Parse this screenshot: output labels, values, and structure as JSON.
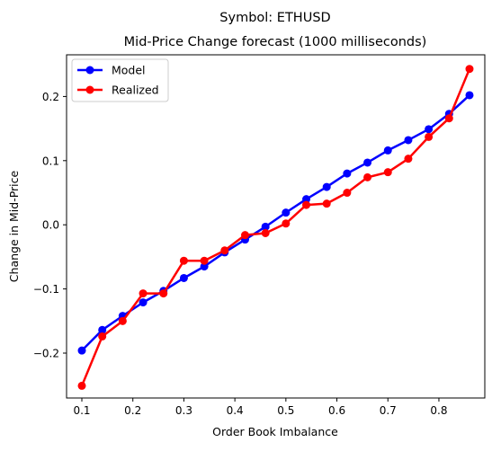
{
  "chart_data": {
    "type": "line",
    "suptitle": "Symbol: ETHUSD",
    "title": "Mid-Price Change forecast (1000 milliseconds)",
    "xlabel": "Order Book Imbalance",
    "ylabel": "Change in Mid-Price",
    "xlim": [
      0.07,
      0.89
    ],
    "ylim": [
      -0.27,
      0.265
    ],
    "xticks": [
      0.1,
      0.2,
      0.3,
      0.4,
      0.5,
      0.6,
      0.7,
      0.8
    ],
    "xtick_labels": [
      "0.1",
      "0.2",
      "0.3",
      "0.4",
      "0.5",
      "0.6",
      "0.7",
      "0.8"
    ],
    "yticks": [
      -0.2,
      -0.1,
      0.0,
      0.1,
      0.2
    ],
    "ytick_labels": [
      "−0.2",
      "−0.1",
      "0.0",
      "0.1",
      "0.2"
    ],
    "grid": false,
    "legend_position": "top-left",
    "x": [
      0.1,
      0.14,
      0.18,
      0.22,
      0.26,
      0.3,
      0.34,
      0.38,
      0.42,
      0.46,
      0.5,
      0.54,
      0.58,
      0.62,
      0.66,
      0.7,
      0.74,
      0.78,
      0.82,
      0.86
    ],
    "series": [
      {
        "name": "Model",
        "color": "#0000ff",
        "values": [
          -0.196,
          -0.164,
          -0.142,
          -0.121,
          -0.103,
          -0.083,
          -0.065,
          -0.043,
          -0.023,
          -0.003,
          0.019,
          0.04,
          0.059,
          0.08,
          0.097,
          0.116,
          0.132,
          0.149,
          0.173,
          0.202
        ]
      },
      {
        "name": "Realized",
        "color": "#ff0000",
        "values": [
          -0.251,
          -0.174,
          -0.15,
          -0.107,
          -0.107,
          -0.056,
          -0.056,
          -0.04,
          -0.016,
          -0.013,
          0.002,
          0.031,
          0.033,
          0.05,
          0.074,
          0.082,
          0.103,
          0.137,
          0.166,
          0.243
        ]
      }
    ]
  }
}
